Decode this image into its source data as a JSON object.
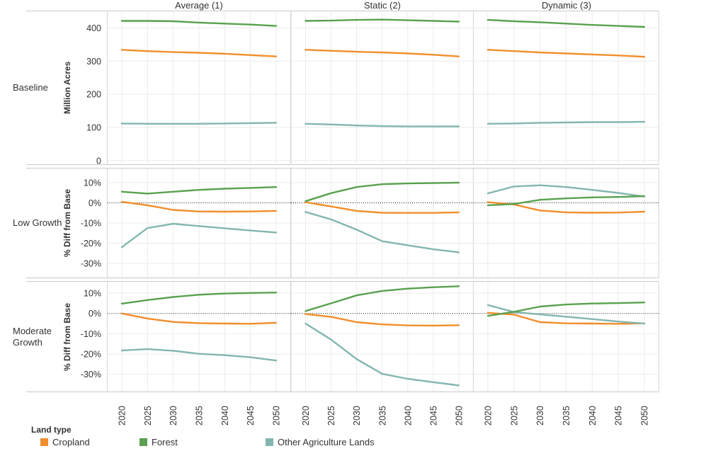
{
  "legend": {
    "title": "Land type",
    "items": [
      {
        "label": "Cropland",
        "color": "#f28e2b"
      },
      {
        "label": "Forest",
        "color": "#59a14f"
      },
      {
        "label": "Other Agriculture Lands",
        "color": "#83b6b0"
      }
    ]
  },
  "chart_data": {
    "type": "line",
    "x": [
      2020,
      2025,
      2030,
      2035,
      2040,
      2045,
      2050
    ],
    "col_headers": [
      "Average (1)",
      "Static (2)",
      "Dynamic (3)"
    ],
    "row_labels": [
      "Baseline",
      "Low Growth",
      "Moderate Growth"
    ],
    "row_axis_titles": [
      "Million Acres",
      "% Diff from Base",
      "% Diff from Base"
    ],
    "row_ticks": [
      [
        400,
        300,
        200,
        100,
        0
      ],
      [
        10,
        0,
        -10,
        -20,
        -30
      ],
      [
        10,
        0,
        -10,
        -20,
        -30
      ]
    ],
    "row_tick_suffix": [
      "",
      "%",
      "%"
    ],
    "row_ylim": [
      [
        -12,
        452
      ],
      [
        -37,
        17
      ],
      [
        -38.5,
        15.6
      ]
    ],
    "row_zero_line": [
      false,
      true,
      true
    ],
    "grid": true,
    "legend_position": "bottom",
    "series": [
      {
        "name": "Cropland",
        "color": "#f28e2b"
      },
      {
        "name": "Other Agriculture Lands",
        "color": "#83b6b0"
      },
      {
        "name": "Forest",
        "color": "#59a14f"
      }
    ],
    "facets": [
      {
        "row": "Baseline",
        "col": "Average (1)",
        "values": {
          "Cropland": [
            334,
            330,
            327,
            325,
            322,
            318,
            314
          ],
          "Forest": [
            421,
            421,
            420,
            416,
            413,
            410,
            406
          ],
          "Other Agriculture Lands": [
            112,
            111,
            111,
            111,
            112,
            113,
            114
          ]
        }
      },
      {
        "row": "Baseline",
        "col": "Static (2)",
        "values": {
          "Cropland": [
            334,
            331,
            328,
            326,
            323,
            319,
            314
          ],
          "Forest": [
            421,
            422,
            424,
            425,
            423,
            421,
            419
          ],
          "Other Agriculture Lands": [
            111,
            109,
            106,
            104,
            103,
            103,
            103
          ]
        }
      },
      {
        "row": "Baseline",
        "col": "Dynamic (3)",
        "values": {
          "Cropland": [
            334,
            330,
            326,
            323,
            320,
            317,
            313
          ],
          "Forest": [
            424,
            420,
            417,
            413,
            409,
            406,
            403
          ],
          "Other Agriculture Lands": [
            111,
            112,
            114,
            115,
            116,
            116,
            117
          ]
        }
      },
      {
        "row": "Low Growth",
        "col": "Average (1)",
        "values": {
          "Cropland": [
            0.5,
            -1.2,
            -3.5,
            -4.3,
            -4.4,
            -4.3,
            -4.0
          ],
          "Forest": [
            5.5,
            4.6,
            5.5,
            6.4,
            7.0,
            7.4,
            7.8
          ],
          "Other Agriculture Lands": [
            -22.0,
            -12.5,
            -10.4,
            -11.5,
            -12.6,
            -13.7,
            -14.7
          ]
        }
      },
      {
        "row": "Low Growth",
        "col": "Static (2)",
        "values": {
          "Cropland": [
            0.3,
            -1.8,
            -4.0,
            -4.9,
            -5.0,
            -5.0,
            -4.7
          ],
          "Forest": [
            0.8,
            4.8,
            7.8,
            9.2,
            9.6,
            9.8,
            10.0
          ],
          "Other Agriculture Lands": [
            -4.5,
            -8.2,
            -13.3,
            -19.0,
            -21.0,
            -23.0,
            -24.5
          ]
        }
      },
      {
        "row": "Low Growth",
        "col": "Dynamic (3)",
        "values": {
          "Cropland": [
            0.3,
            -0.8,
            -3.8,
            -4.7,
            -4.9,
            -4.8,
            -4.4
          ],
          "Forest": [
            -1.2,
            -0.6,
            1.5,
            2.2,
            2.7,
            2.9,
            3.3
          ],
          "Other Agriculture Lands": [
            4.7,
            8.1,
            8.7,
            7.8,
            6.4,
            4.9,
            3.1
          ]
        }
      },
      {
        "row": "Moderate Growth",
        "col": "Average (1)",
        "values": {
          "Cropland": [
            0.0,
            -2.5,
            -4.2,
            -4.8,
            -5.0,
            -5.1,
            -4.6
          ],
          "Forest": [
            4.8,
            6.6,
            8.1,
            9.2,
            9.8,
            10.1,
            10.3
          ],
          "Other Agriculture Lands": [
            -18.3,
            -17.6,
            -18.4,
            -19.9,
            -20.6,
            -21.6,
            -23.2
          ]
        }
      },
      {
        "row": "Moderate Growth",
        "col": "Static (2)",
        "values": {
          "Cropland": [
            -0.3,
            -1.7,
            -4.3,
            -5.4,
            -5.9,
            -6.0,
            -5.8
          ],
          "Forest": [
            1.2,
            5.0,
            8.9,
            11.1,
            12.2,
            12.9,
            13.4
          ],
          "Other Agriculture Lands": [
            -5.0,
            -12.9,
            -22.5,
            -29.8,
            -32.2,
            -33.9,
            -35.5
          ]
        }
      },
      {
        "row": "Moderate Growth",
        "col": "Dynamic (3)",
        "values": {
          "Cropland": [
            0.3,
            -0.6,
            -4.3,
            -4.9,
            -5.0,
            -5.1,
            -4.9
          ],
          "Forest": [
            -1.2,
            0.8,
            3.4,
            4.4,
            4.9,
            5.1,
            5.4
          ],
          "Other Agriculture Lands": [
            4.1,
            0.7,
            -0.5,
            -1.6,
            -2.8,
            -4.0,
            -5.0
          ]
        }
      }
    ]
  }
}
